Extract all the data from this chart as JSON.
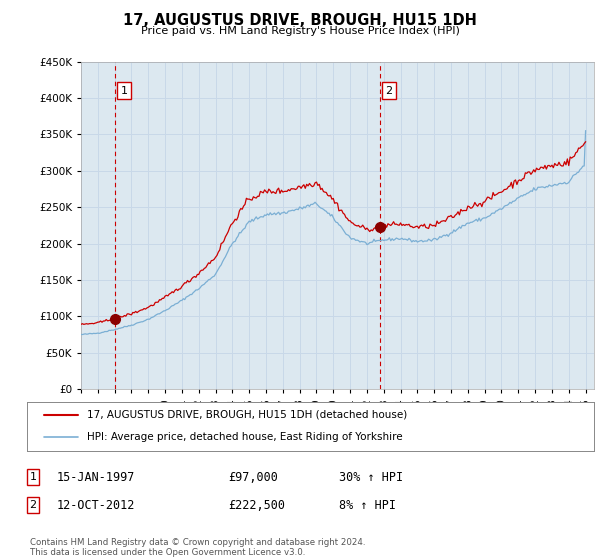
{
  "title": "17, AUGUSTUS DRIVE, BROUGH, HU15 1DH",
  "subtitle": "Price paid vs. HM Land Registry's House Price Index (HPI)",
  "ylim": [
    0,
    450000
  ],
  "yticks": [
    0,
    50000,
    100000,
    150000,
    200000,
    250000,
    300000,
    350000,
    400000,
    450000
  ],
  "xlim_start": 1995.0,
  "xlim_end": 2025.5,
  "line1_color": "#cc0000",
  "line2_color": "#7bafd4",
  "marker_color": "#8b0000",
  "vline_color": "#cc0000",
  "grid_color": "#c8d8e8",
  "bg_color": "#ffffff",
  "plot_bg_color": "#dce8f0",
  "legend_box_color": "#ffffff",
  "legend_entries": [
    "17, AUGUSTUS DRIVE, BROUGH, HU15 1DH (detached house)",
    "HPI: Average price, detached house, East Riding of Yorkshire"
  ],
  "sale1_date_x": 1997.04,
  "sale1_price": 97000,
  "sale1_label": "1",
  "sale2_date_x": 2012.79,
  "sale2_price": 222500,
  "sale2_label": "2",
  "table_rows": [
    [
      "1",
      "15-JAN-1997",
      "£97,000",
      "30% ↑ HPI"
    ],
    [
      "2",
      "12-OCT-2012",
      "£222,500",
      "8% ↑ HPI"
    ]
  ],
  "footer": "Contains HM Land Registry data © Crown copyright and database right 2024.\nThis data is licensed under the Open Government Licence v3.0."
}
